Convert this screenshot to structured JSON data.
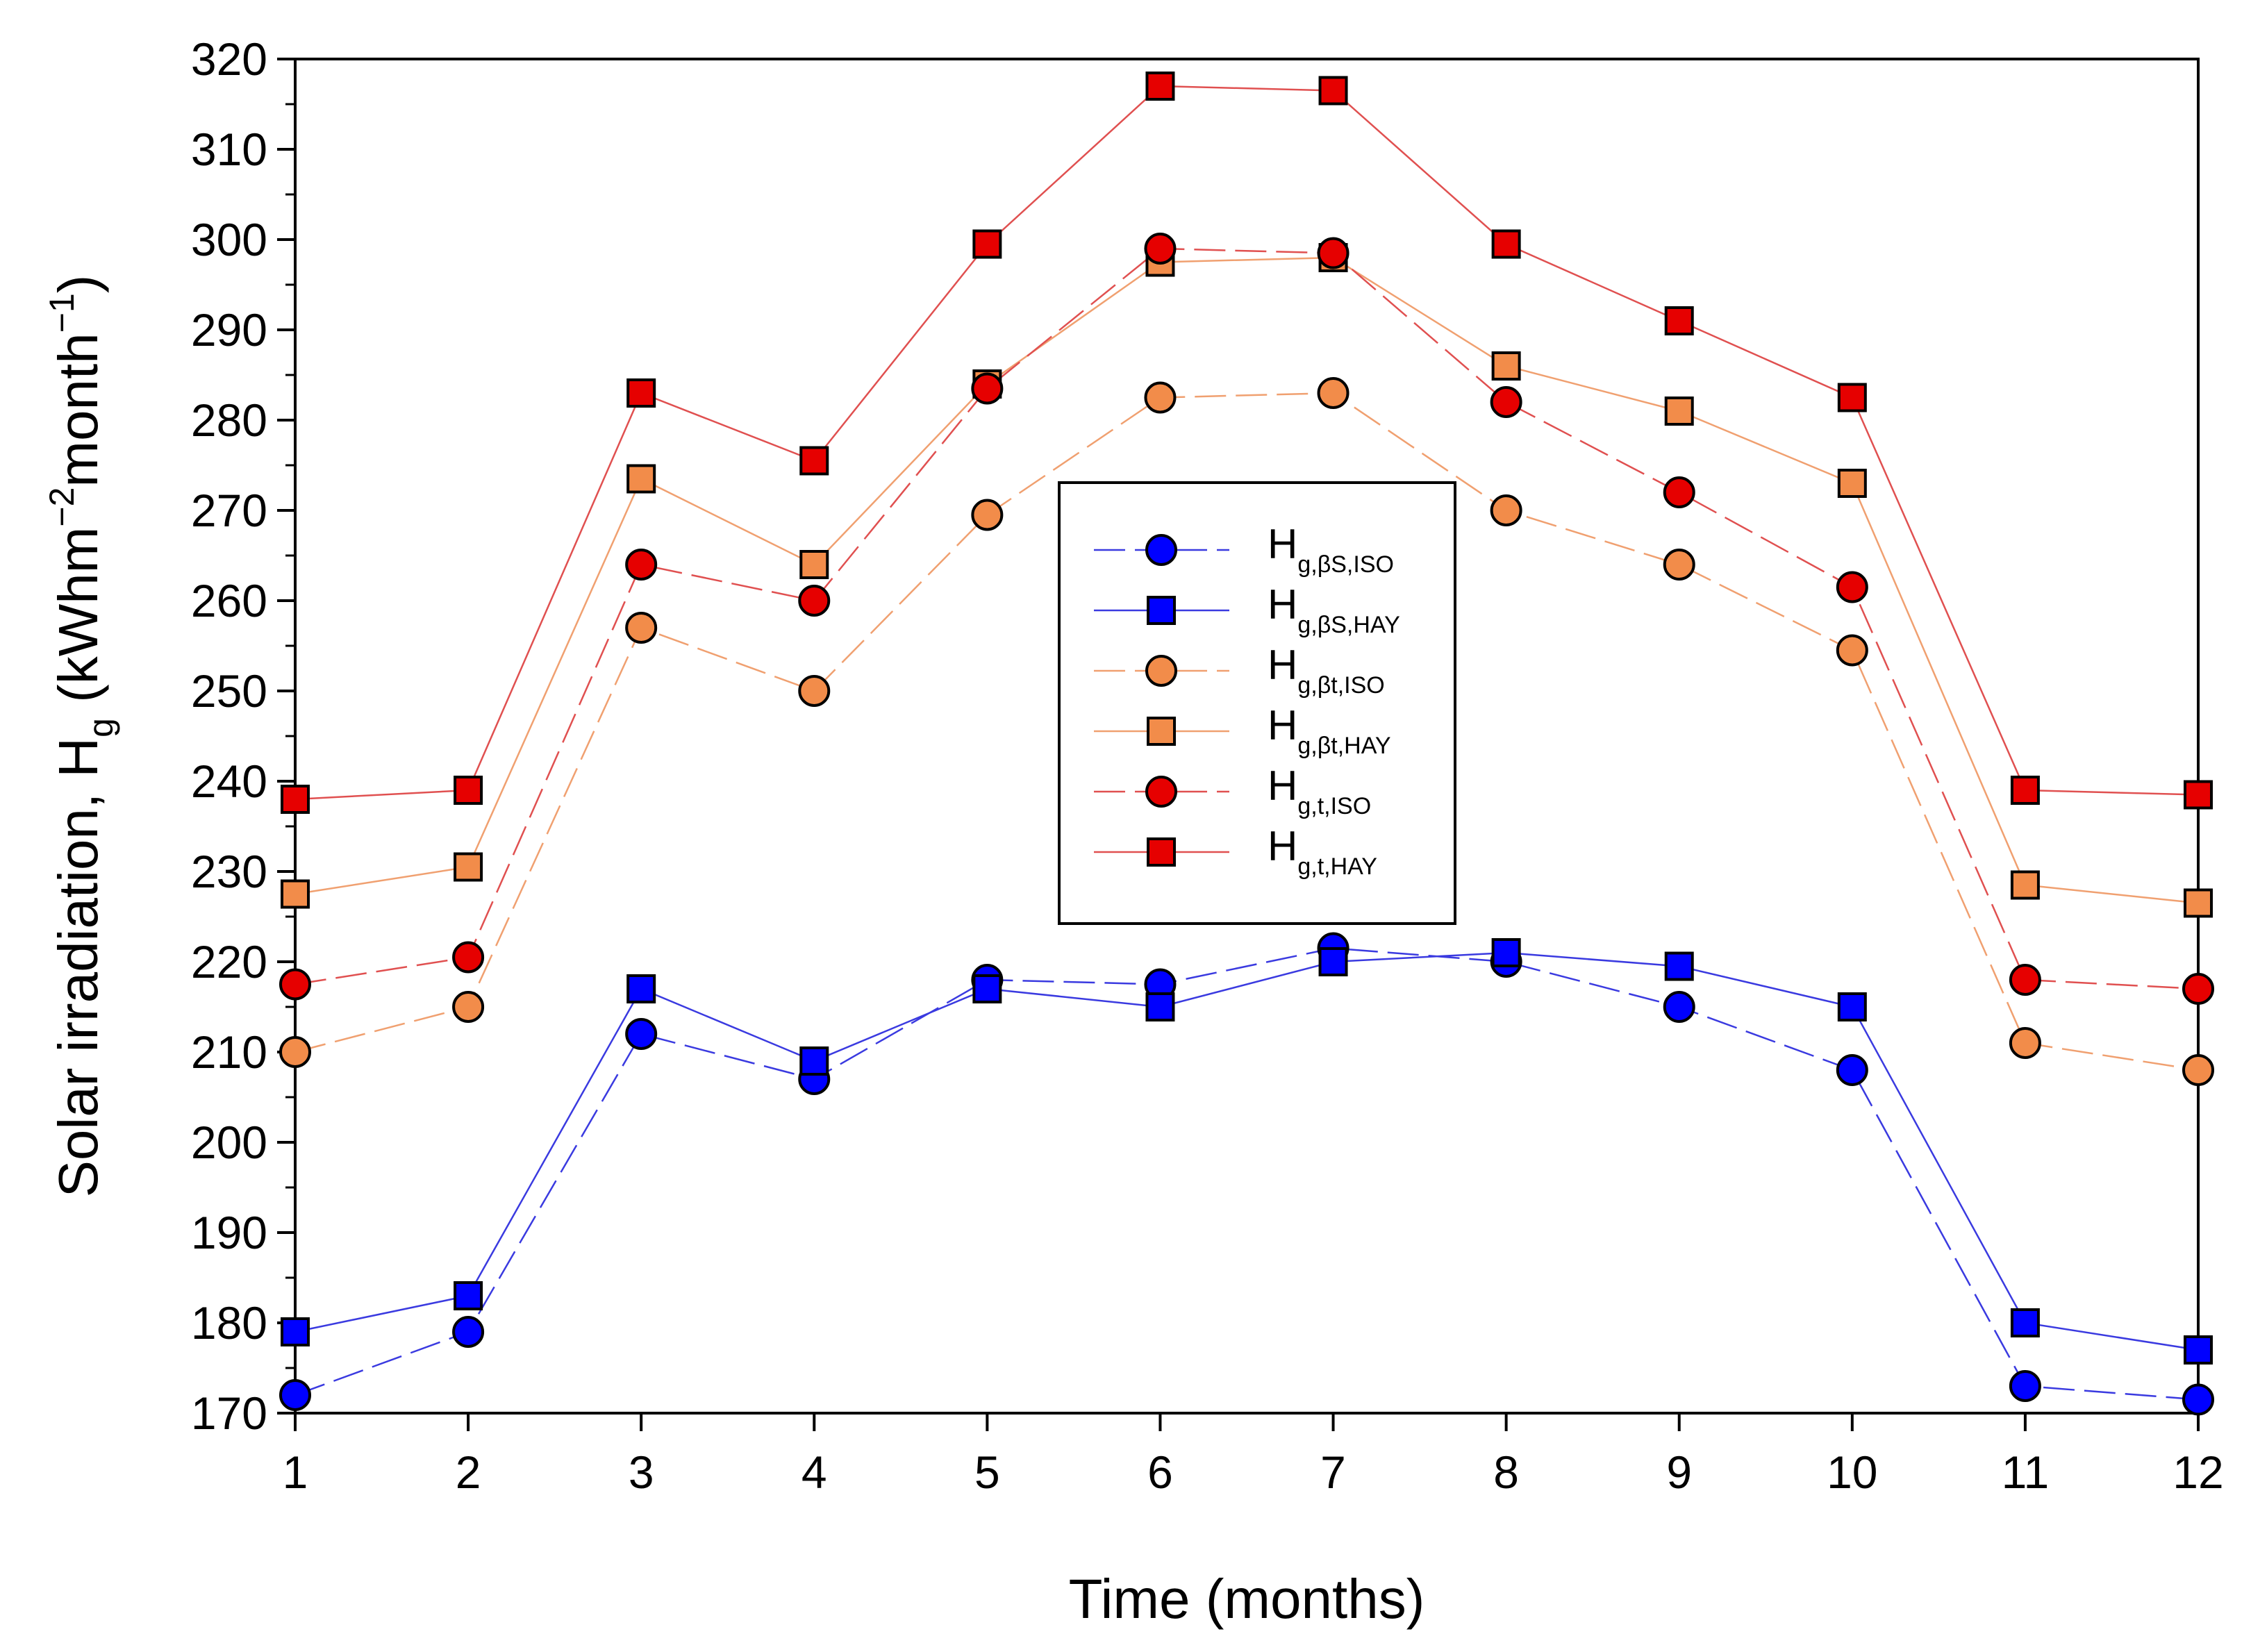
{
  "chart_data": {
    "type": "line",
    "title": "",
    "xlabel": "Time (months)",
    "ylabel": {
      "prefix": "Solar irradiation, H",
      "sub": "g",
      "unit_open": " (kWhm",
      "unit_exp1": "−2",
      "unit_mid": "month",
      "unit_exp2": "−1",
      "unit_close": ")"
    },
    "x": [
      1,
      2,
      3,
      4,
      5,
      6,
      7,
      8,
      9,
      10,
      11,
      12
    ],
    "xlim": [
      1,
      12
    ],
    "ylim": [
      170,
      320
    ],
    "yticks": [
      170,
      180,
      190,
      200,
      210,
      220,
      230,
      240,
      250,
      260,
      270,
      280,
      290,
      300,
      310,
      320
    ],
    "legend_position": "center",
    "series": [
      {
        "id": "s1",
        "name": "H",
        "sub": "g,βS,ISO",
        "marker": "circle",
        "color": "#0000ff",
        "line_color": "#3a3ae0",
        "dashed": true,
        "values": [
          172,
          179,
          212,
          207,
          218,
          217.5,
          221.5,
          220,
          215,
          208,
          173,
          171.5
        ]
      },
      {
        "id": "s2",
        "name": "H",
        "sub": "g,βS,HAY",
        "marker": "square",
        "color": "#0000ff",
        "line_color": "#3a3ae0",
        "dashed": false,
        "values": [
          179,
          183,
          217,
          209,
          217,
          215,
          220,
          221,
          219.5,
          215,
          180,
          177
        ]
      },
      {
        "id": "s3",
        "name": "H",
        "sub": "g,βt,ISO",
        "marker": "circle",
        "color": "#f28c4a",
        "line_color": "#f0a070",
        "dashed": true,
        "values": [
          210,
          215,
          257,
          250,
          269.5,
          282.5,
          283,
          270,
          264,
          254.5,
          211,
          208
        ]
      },
      {
        "id": "s4",
        "name": "H",
        "sub": "g,βt,HAY",
        "marker": "square",
        "color": "#f28c4a",
        "line_color": "#f0a070",
        "dashed": false,
        "values": [
          227.5,
          230.5,
          273.5,
          264,
          284,
          297.5,
          298,
          286,
          281,
          273,
          228.5,
          226.5
        ]
      },
      {
        "id": "s5",
        "name": "H",
        "sub": "g,t,ISO",
        "marker": "circle",
        "color": "#e60000",
        "line_color": "#e05050",
        "dashed": true,
        "values": [
          217.5,
          220.5,
          264,
          260,
          283.5,
          299,
          298.5,
          282,
          272,
          261.5,
          218,
          217
        ]
      },
      {
        "id": "s6",
        "name": "H",
        "sub": "g,t,HAY",
        "marker": "square",
        "color": "#e60000",
        "line_color": "#e05050",
        "dashed": false,
        "values": [
          238,
          239,
          283,
          275.5,
          299.5,
          317,
          316.5,
          299.5,
          291,
          282.5,
          239,
          238.5
        ]
      }
    ]
  }
}
